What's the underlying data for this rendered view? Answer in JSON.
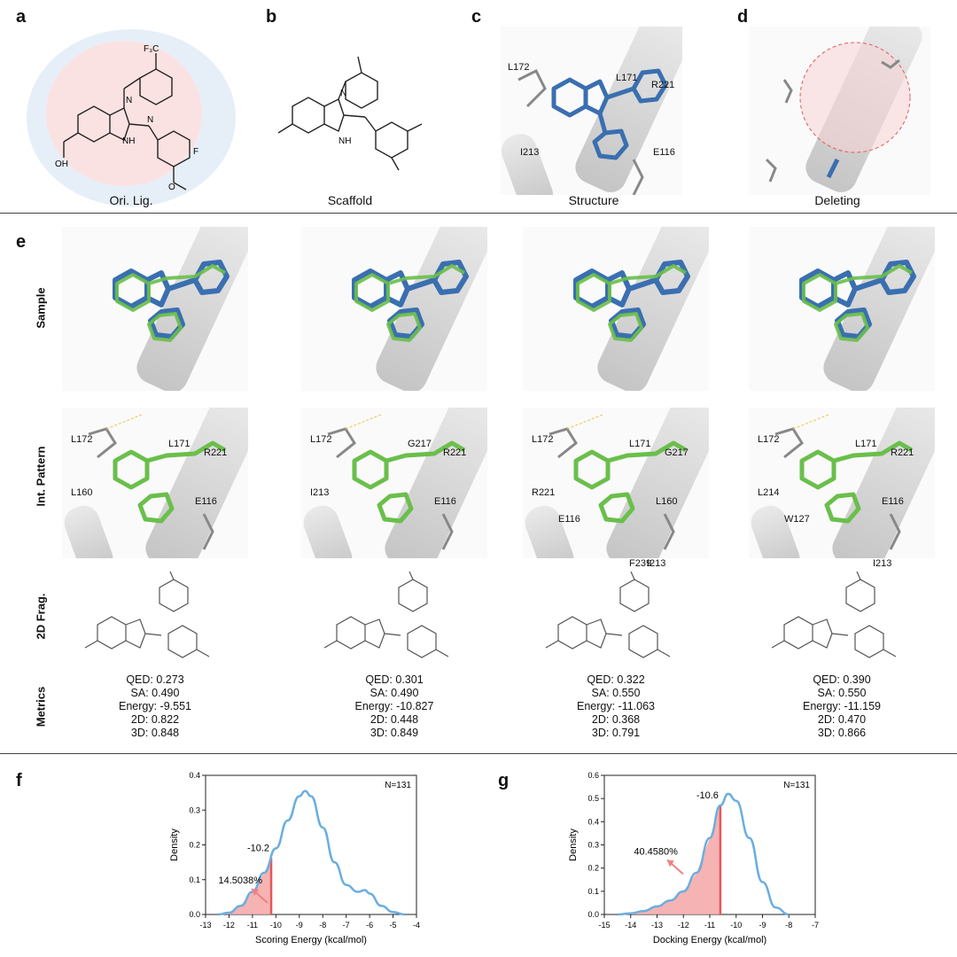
{
  "panels": {
    "a": {
      "letter": "a",
      "caption": "Ori. Lig."
    },
    "b": {
      "letter": "b",
      "caption": "Scaffold"
    },
    "c": {
      "letter": "c",
      "caption": "Structure",
      "residues": [
        "L172",
        "L171",
        "R221",
        "I213",
        "E116"
      ]
    },
    "d": {
      "letter": "d",
      "caption": "Deleting"
    },
    "e": {
      "letter": "e"
    },
    "f": {
      "letter": "f"
    },
    "g": {
      "letter": "g"
    }
  },
  "molecule_labels": {
    "cf3": "F₃C",
    "f": "F",
    "n": "N",
    "nh": "NH",
    "oh": "OH",
    "o": "O",
    "h": "H",
    "hn": "HN"
  },
  "row_labels": [
    "Sample",
    "Int. Pattern",
    "2D Frag.",
    "Metrics"
  ],
  "int_pattern_residues": [
    [
      "L172",
      "L171",
      "R221",
      "L160",
      "E116"
    ],
    [
      "L172",
      "G217",
      "R221",
      "I213",
      "E116"
    ],
    [
      "L172",
      "L171",
      "G217",
      "R221",
      "L160",
      "I213",
      "E116",
      "F239"
    ],
    [
      "L172",
      "L171",
      "R221",
      "L214",
      "E116",
      "I213",
      "W127"
    ]
  ],
  "metrics": [
    {
      "qed": "QED: 0.273",
      "sa": "SA: 0.490",
      "energy": "Energy: -9.551",
      "d2": "2D: 0.822",
      "d3": "3D: 0.848"
    },
    {
      "qed": "QED: 0.301",
      "sa": "SA: 0.490",
      "energy": "Energy: -10.827",
      "d2": "2D: 0.448",
      "d3": "3D: 0.849"
    },
    {
      "qed": "QED: 0.322",
      "sa": "SA: 0.550",
      "energy": "Energy: -11.063",
      "d2": "2D: 0.368",
      "d3": "3D: 0.791"
    },
    {
      "qed": "QED: 0.390",
      "sa": "SA: 0.550",
      "energy": "Energy: -11.159",
      "d2": "2D: 0.470",
      "d3": "3D: 0.866"
    }
  ],
  "colors": {
    "ligand_blue": "#3a6fb0",
    "sample_green": "#6abf4b",
    "kde_line": "#6aaee0",
    "fill_red": "#f4a6a6",
    "threshold": "#e4575a",
    "panel_a_outer": "#e6eff8",
    "panel_a_inner": "#fbe2e2"
  },
  "chart_data": [
    {
      "type": "area",
      "xlabel": "Scoring Energy (kcal/mol)",
      "ylabel": "Density",
      "annotation_n": "N=131",
      "threshold_label": "-10.2",
      "percent_label": "14.5038%",
      "threshold": -10.2,
      "xlim": [
        -13,
        -4
      ],
      "ylim": [
        0,
        0.4
      ],
      "xticks": [
        -13,
        -12,
        -11,
        -10,
        -9,
        -8,
        -7,
        -6,
        -5,
        -4
      ],
      "yticks": [
        0.0,
        0.1,
        0.2,
        0.3,
        0.4
      ],
      "x": [
        -12.5,
        -12,
        -11.5,
        -11,
        -10.5,
        -10,
        -9.5,
        -9,
        -8.75,
        -8.5,
        -8,
        -7.5,
        -7,
        -6.5,
        -6.2,
        -6,
        -5.5,
        -5,
        -4.5
      ],
      "y": [
        0.0,
        0.005,
        0.025,
        0.065,
        0.12,
        0.19,
        0.27,
        0.34,
        0.355,
        0.34,
        0.25,
        0.15,
        0.085,
        0.065,
        0.07,
        0.06,
        0.025,
        0.007,
        0.0
      ]
    },
    {
      "type": "area",
      "xlabel": "Docking Energy (kcal/mol)",
      "ylabel": "Density",
      "annotation_n": "N=131",
      "threshold_label": "-10.6",
      "percent_label": "40.4580%",
      "threshold": -10.6,
      "xlim": [
        -15,
        -7
      ],
      "ylim": [
        0,
        0.6
      ],
      "xticks": [
        -15,
        -14,
        -13,
        -12,
        -11,
        -10,
        -9,
        -8,
        -7
      ],
      "yticks": [
        0.0,
        0.1,
        0.2,
        0.3,
        0.4,
        0.5,
        0.6
      ],
      "x": [
        -14.5,
        -14,
        -13.5,
        -13,
        -12.5,
        -12,
        -11.5,
        -11,
        -10.6,
        -10.3,
        -10,
        -9.5,
        -9,
        -8.5,
        -8
      ],
      "y": [
        0.0,
        0.005,
        0.015,
        0.035,
        0.06,
        0.1,
        0.18,
        0.33,
        0.47,
        0.52,
        0.49,
        0.33,
        0.14,
        0.03,
        0.0
      ]
    }
  ]
}
